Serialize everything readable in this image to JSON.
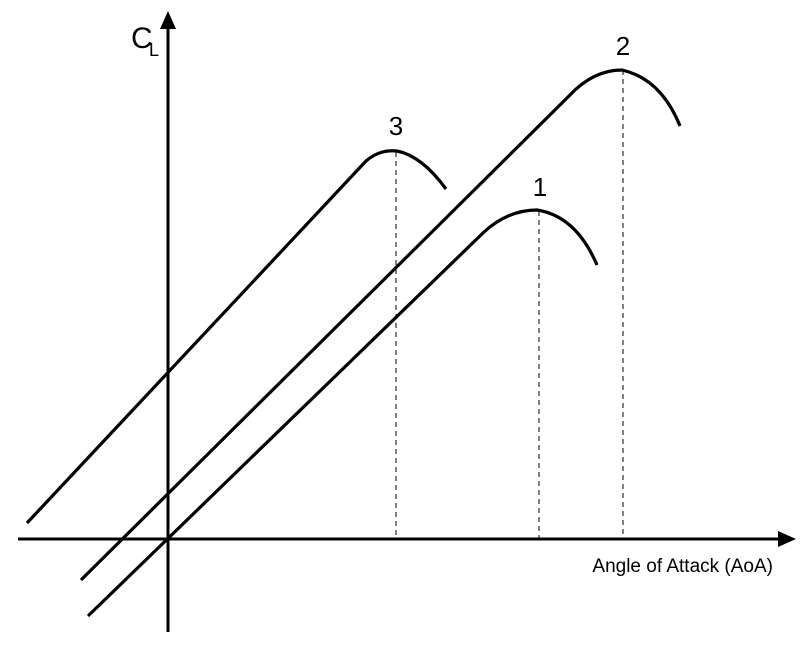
{
  "diagram": {
    "y_axis": {
      "label_main": "C",
      "label_sub": "L"
    },
    "x_axis": {
      "label": "Angle of Attack (AoA)"
    },
    "curves": [
      {
        "id": "1",
        "label": "1"
      },
      {
        "id": "2",
        "label": "2"
      },
      {
        "id": "3",
        "label": "3"
      }
    ]
  }
}
